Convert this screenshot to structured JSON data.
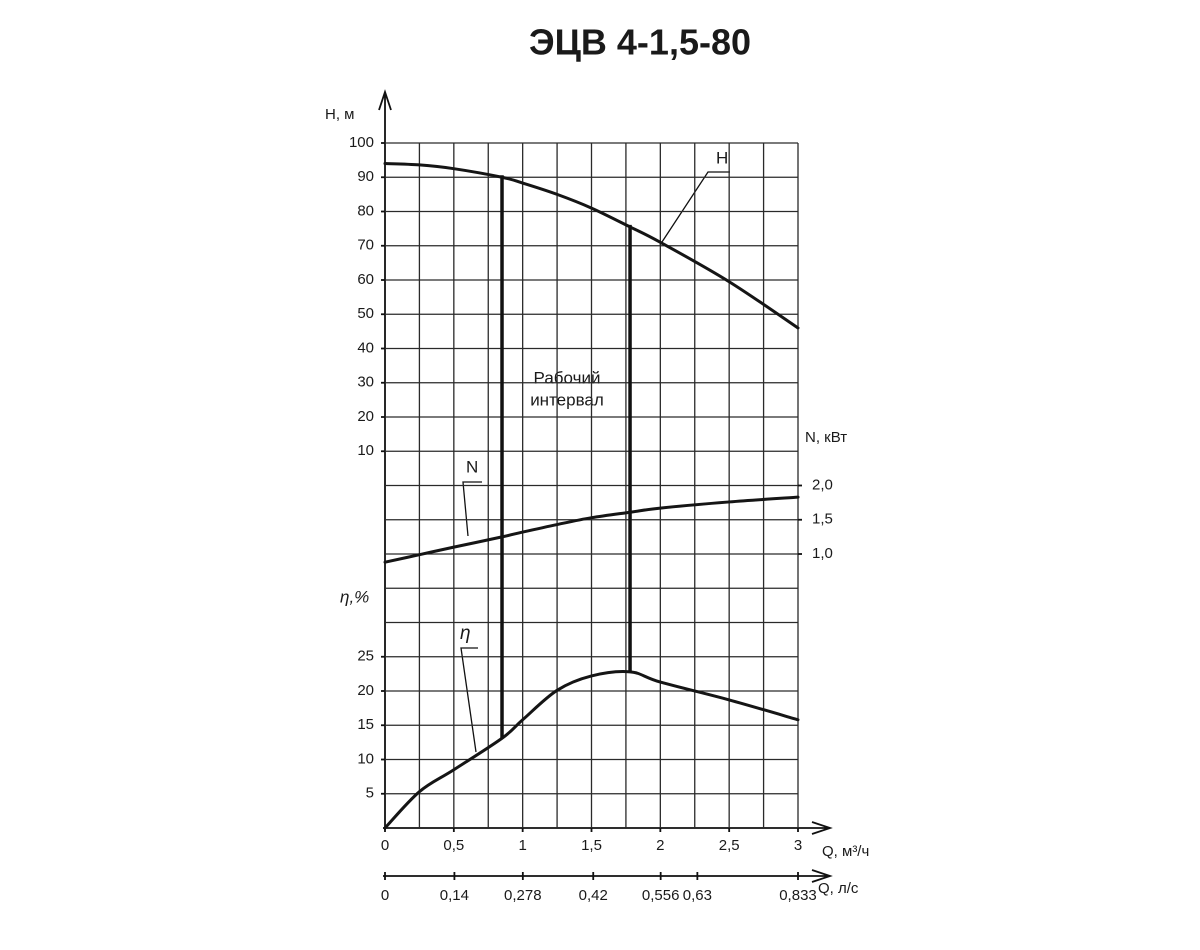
{
  "chart_data": {
    "type": "line",
    "title": "ЭЦВ 4-1,5-80",
    "xlabel": "Q, м³/ч",
    "xlim": [
      0,
      3
    ],
    "xticks": [
      0,
      {
        "value": 0.5,
        "label": "0,5"
      },
      1,
      {
        "value": 1.5,
        "label": "1,5"
      },
      2,
      {
        "value": 2.5,
        "label": "2,5"
      },
      3
    ],
    "x2label": "Q, л/с",
    "x2lim": [
      0,
      0.833
    ],
    "x2ticks": [
      0,
      {
        "value": 0.14,
        "label": "0,14"
      },
      {
        "value": 0.278,
        "label": "0,278"
      },
      {
        "value": 0.42,
        "label": "0,42"
      },
      {
        "value": 0.556,
        "label": "0,556"
      },
      {
        "value": 0.63,
        "label": "0,63"
      },
      {
        "value": 0.833,
        "label": "0,833"
      }
    ],
    "xgrid": [
      0.25,
      0.5,
      0.75,
      1,
      1.25,
      1.5,
      1.75,
      2,
      2.25,
      2.5,
      2.75,
      3
    ],
    "ylabel": "H, м",
    "ylim": [
      -100,
      100
    ],
    "yticks": [
      10,
      20,
      30,
      40,
      50,
      60,
      70,
      80,
      90,
      100
    ],
    "y2label": "N, кВт",
    "y2lim": [
      -3,
      7
    ],
    "y2ticks": [
      {
        "value": 1,
        "label": "1,0"
      },
      {
        "value": 1.5,
        "label": "1,5"
      },
      {
        "value": 2,
        "label": "2,0"
      }
    ],
    "y3label": "η,%",
    "y3lim": [
      0,
      100
    ],
    "y3ticks": [
      5,
      10,
      15,
      20,
      25
    ],
    "y3grid": [
      5,
      10,
      15,
      20,
      25,
      30,
      35,
      40,
      45,
      50,
      55,
      60,
      65,
      70,
      75,
      80,
      85,
      90,
      95,
      100
    ],
    "grid": true,
    "x": [
      0,
      0.25,
      0.5,
      0.85,
      1,
      1.25,
      1.5,
      1.78,
      2,
      2.5,
      3
    ],
    "series": [
      {
        "name": "H",
        "color": "#151515",
        "values": [
          94,
          93.6,
          92.5,
          90,
          88.3,
          85,
          81,
          75.5,
          71,
          59.5,
          46
        ]
      },
      {
        "name": "N",
        "color": "#151515",
        "axis": "y2",
        "values": [
          0.88,
          0.99,
          1.1,
          1.25,
          1.32,
          1.43,
          1.53,
          1.61,
          1.67,
          1.76,
          1.83
        ]
      },
      {
        "name": "η",
        "color": "#151515",
        "axis": "y3",
        "values": [
          0,
          5.3,
          8.5,
          13.1,
          15.8,
          20.1,
          22.2,
          22.8,
          21.3,
          18.7,
          15.8
        ]
      }
    ],
    "working_interval": [
      0.85,
      1.78
    ],
    "annotation": [
      "Рабочий",
      "интервал"
    ]
  }
}
